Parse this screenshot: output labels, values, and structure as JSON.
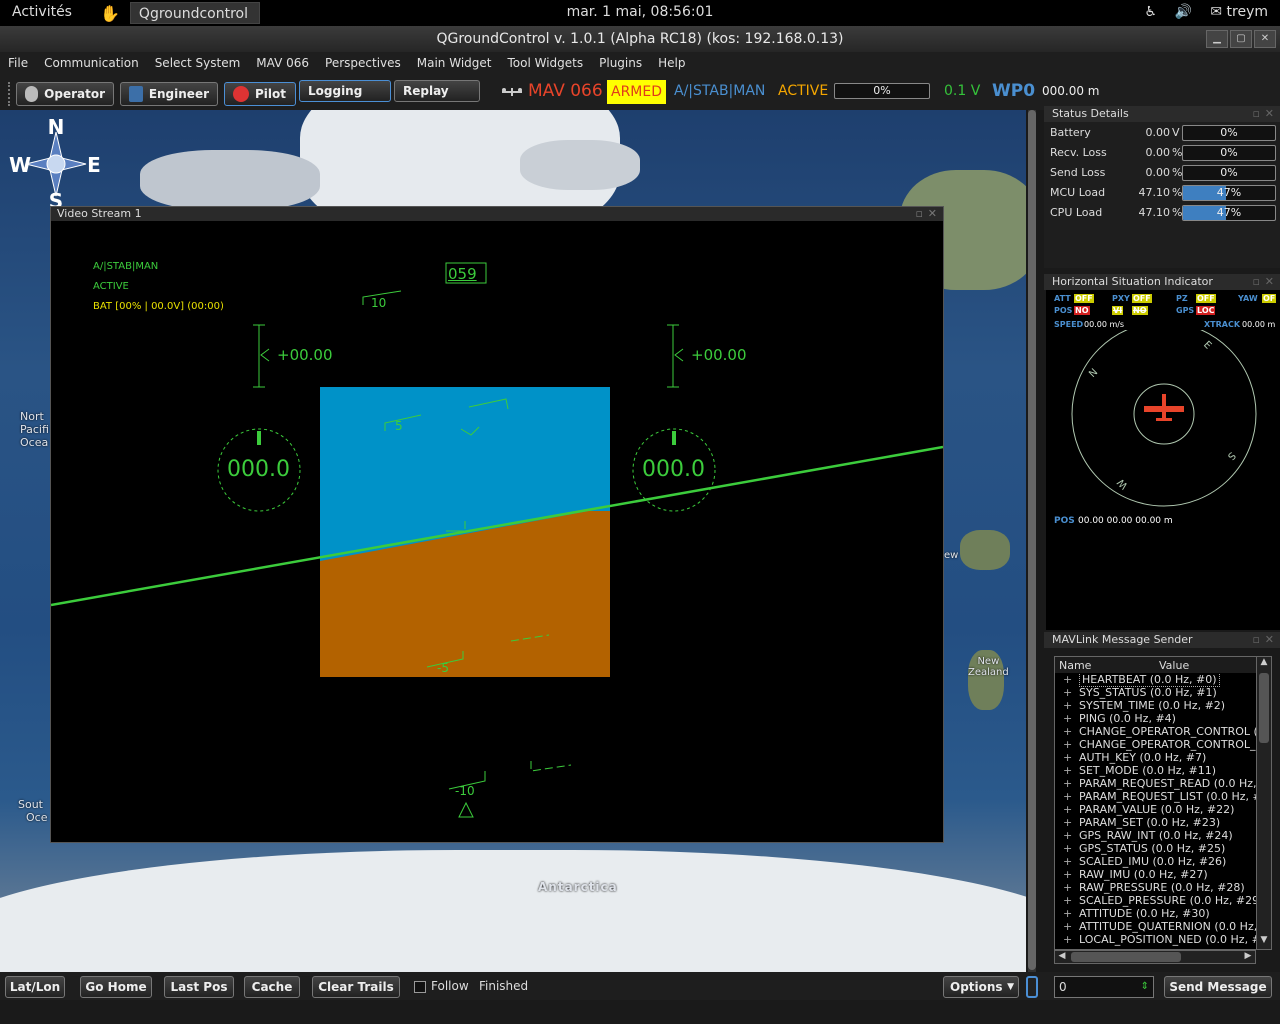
{
  "system": {
    "activities": "Activités",
    "app_name": "Qgroundcontrol",
    "clock": "mar. 1 mai, 08:56:01",
    "user": "treym"
  },
  "window": {
    "title": "QGroundControl v. 1.0.1 (Alpha RC18) (kos: 192.168.0.13)"
  },
  "menu": [
    "File",
    "Communication",
    "Select System",
    "MAV 066",
    "Perspectives",
    "Main Widget",
    "Tool Widgets",
    "Plugins",
    "Help"
  ],
  "perspectives": {
    "operator": "Operator",
    "engineer": "Engineer",
    "pilot": "Pilot",
    "logging": "Logging",
    "replay": "Replay"
  },
  "mav": {
    "name": "MAV 066",
    "armed": "ARMED",
    "mode": "A/|STAB|MAN",
    "state": "ACTIVE",
    "progress": "0%",
    "voltage": "0.1 V",
    "waypoint": "WP0",
    "distance": "000.00 m"
  },
  "map": {
    "compass": {
      "n": "N",
      "s": "S",
      "e": "E",
      "w": "W"
    },
    "labels": {
      "north_pacific": [
        "Nort",
        "Pacifi",
        "Ocea"
      ],
      "south": [
        "Sout",
        "Oce"
      ],
      "antarctica": "Antarctica",
      "new_zealand": [
        "New",
        "Zealand"
      ],
      "new": "ew"
    }
  },
  "video": {
    "title": "Video Stream 1",
    "hud": {
      "mode": "A/|STAB|MAN",
      "state": "ACTIVE",
      "battery": "BAT [00% | 00.0V] (00:00)",
      "heading": "059",
      "left_alt": "+00.00",
      "right_alt": "+00.00",
      "left_gauge": "000.0",
      "right_gauge": "000.0",
      "pitch_10": "10",
      "pitch_5": "5",
      "pitch_m5": "-5",
      "pitch_m10": "-10"
    }
  },
  "status_details": {
    "title": "Status Details",
    "rows": [
      {
        "label": "Battery",
        "value": "0.00",
        "unit": "V",
        "bar": "0%",
        "fill": 0
      },
      {
        "label": "Recv. Loss",
        "value": "0.00",
        "unit": "%",
        "bar": "0%",
        "fill": 0
      },
      {
        "label": "Send Loss",
        "value": "0.00",
        "unit": "%",
        "bar": "0%",
        "fill": 0
      },
      {
        "label": "MCU Load",
        "value": "47.10",
        "unit": "%",
        "bar": "47%",
        "fill": 0.47
      },
      {
        "label": "CPU Load",
        "value": "47.10",
        "unit": "%",
        "bar": "47%",
        "fill": 0.47
      }
    ]
  },
  "hsi": {
    "title": "Horizontal Situation Indicator",
    "flags": {
      "att": "ATT",
      "off": "OFF",
      "pxy": "PXY",
      "pz": "PZ",
      "yaw": "YAW",
      "of": "OF",
      "pos": "POS",
      "no": "NO",
      "gps": "GPS",
      "loc": "LOC",
      "vi": "VI",
      "no2": "NO"
    },
    "speed_label": "SPEED",
    "speed": "00.00 m/s",
    "xtrack_label": "XTRACK",
    "xtrack": "00.00 m",
    "pos_label": "POS",
    "pos": "00.00 00.00 00.00 m",
    "dirs": {
      "n": "N",
      "e": "E",
      "s": "S",
      "w": "W"
    }
  },
  "sender": {
    "title": "MAVLink Message Sender",
    "col_name": "Name",
    "col_value": "Value",
    "items": [
      "HEARTBEAT (0.0 Hz, #0)",
      "SYS_STATUS (0.0 Hz, #1)",
      "SYSTEM_TIME (0.0 Hz, #2)",
      "PING (0.0 Hz, #4)",
      "CHANGE_OPERATOR_CONTROL (",
      "CHANGE_OPERATOR_CONTROL_",
      "AUTH_KEY (0.0 Hz, #7)",
      "SET_MODE (0.0 Hz, #11)",
      "PARAM_REQUEST_READ (0.0 Hz,",
      "PARAM_REQUEST_LIST (0.0 Hz, #",
      "PARAM_VALUE (0.0 Hz, #22)",
      "PARAM_SET (0.0 Hz, #23)",
      "GPS_RAW_INT (0.0 Hz, #24)",
      "GPS_STATUS (0.0 Hz, #25)",
      "SCALED_IMU (0.0 Hz, #26)",
      "RAW_IMU (0.0 Hz, #27)",
      "RAW_PRESSURE (0.0 Hz, #28)",
      "SCALED_PRESSURE (0.0 Hz, #29",
      "ATTITUDE (0.0 Hz, #30)",
      "ATTITUDE_QUATERNION (0.0 Hz,",
      "LOCAL_POSITION_NED (0.0 Hz, #"
    ],
    "rate_value": "0",
    "send_button": "Send Message"
  },
  "bottom": {
    "latlon": "Lat/Lon",
    "go_home": "Go Home",
    "last_pos": "Last Pos",
    "cache": "Cache",
    "clear_trails": "Clear Trails",
    "follow": "Follow",
    "finished": "Finished",
    "options": "Options"
  }
}
